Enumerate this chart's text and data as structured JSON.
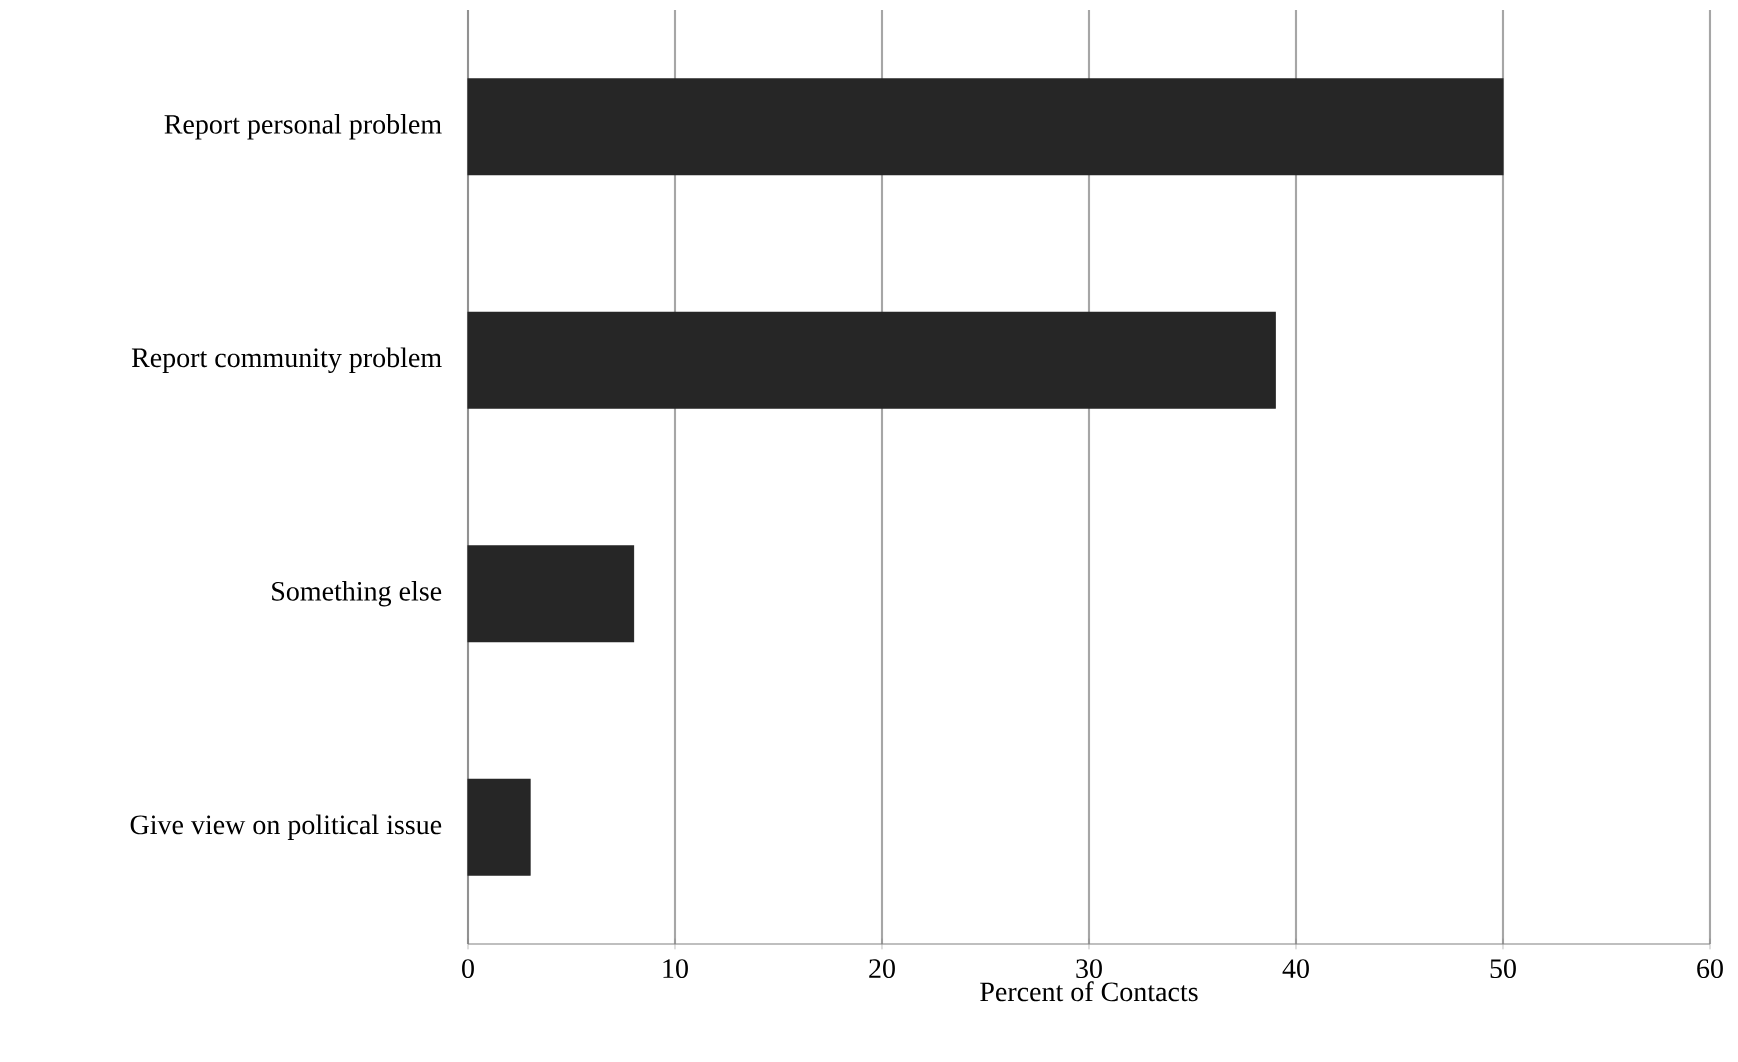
{
  "chart_data": {
    "type": "bar",
    "orientation": "horizontal",
    "categories": [
      "Report personal problem",
      "Report community problem",
      "Something else",
      "Give view on political issue"
    ],
    "values": [
      50,
      39,
      8,
      3
    ],
    "color": "#262626",
    "xlabel": "Percent of Contacts",
    "xlim": [
      0,
      60
    ],
    "xticks": [
      0,
      10,
      20,
      30,
      40,
      50,
      60
    ],
    "grid": "x"
  }
}
